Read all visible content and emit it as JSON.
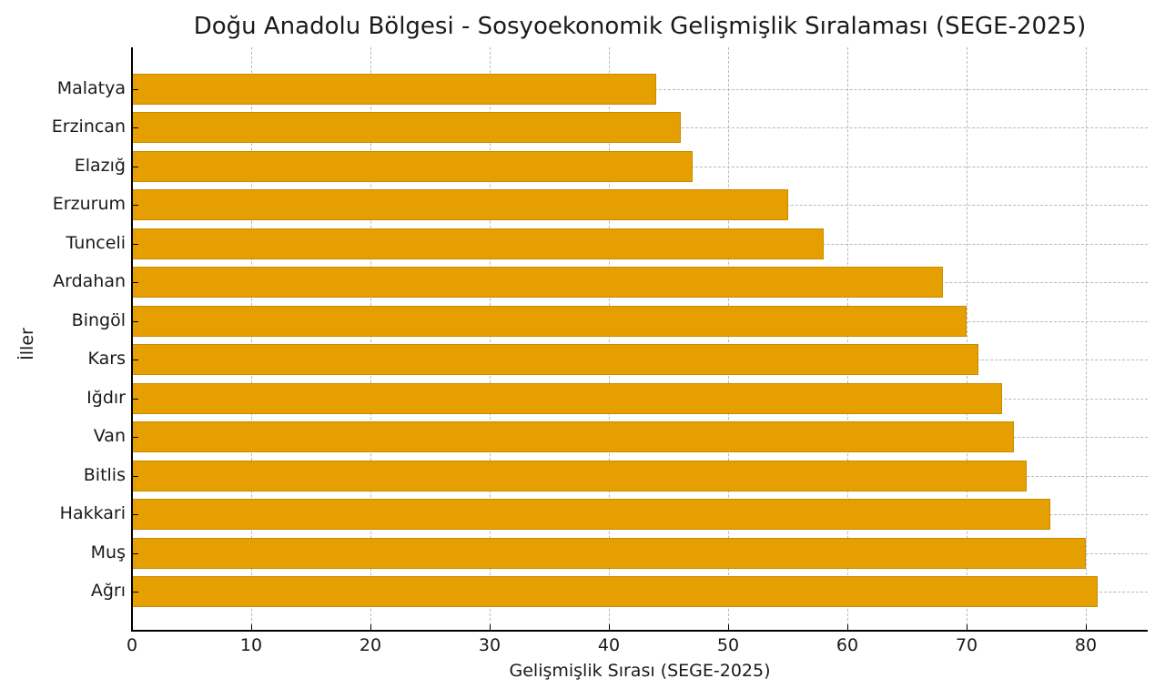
{
  "chart_data": {
    "type": "bar",
    "orientation": "horizontal",
    "title": "Doğu Anadolu Bölgesi - Sosyoekonomik Gelişmişlik Sıralaması (SEGE-2025)",
    "xlabel": "Gelişmişlik Sırası (SEGE-2025)",
    "ylabel": "İller",
    "categories": [
      "Malatya",
      "Erzincan",
      "Elazığ",
      "Erzurum",
      "Tunceli",
      "Ardahan",
      "Bingöl",
      "Kars",
      "Iğdır",
      "Van",
      "Bitlis",
      "Hakkari",
      "Muş",
      "Ağrı"
    ],
    "values": [
      44,
      46,
      47,
      55,
      58,
      68,
      70,
      71,
      73,
      74,
      75,
      77,
      80,
      81
    ],
    "xlim": [
      0,
      85
    ],
    "xticks": [
      "0",
      "10",
      "20",
      "30",
      "40",
      "50",
      "60",
      "70",
      "80"
    ],
    "grid": true,
    "grid_style": "dashed",
    "bar_color": "#e69f00",
    "legend": null
  }
}
